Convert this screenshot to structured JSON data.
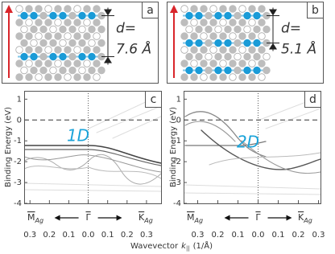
{
  "panels": [
    {
      "label": "a",
      "d_label": "d=",
      "d_value": "7.6 Å"
    },
    {
      "label": "b",
      "d_label": "d=",
      "d_value": "5.1 Å"
    }
  ],
  "plots": [
    {
      "label": "c",
      "phase": "1D",
      "xlim": [
        -0.33,
        0.375
      ]
    },
    {
      "label": "d",
      "phase": "2D",
      "xlim": [
        -0.37,
        0.31
      ]
    }
  ],
  "y_label": "Binding Energy (eV)",
  "ylim": [
    -4,
    1.4
  ],
  "yticks": [
    1,
    0,
    -1,
    -2,
    -3,
    -4
  ],
  "xticks": [
    {
      "value": -0.3,
      "label": "0.3"
    },
    {
      "value": -0.2,
      "label": "0.2"
    },
    {
      "value": -0.1,
      "label": "0.1"
    },
    {
      "value": 0,
      "label": "0.0"
    },
    {
      "value": 0.1,
      "label": "0.1"
    },
    {
      "value": 0.2,
      "label": "0.2"
    },
    {
      "value": 0.3,
      "label": "0.3"
    }
  ],
  "x_label": {
    "text": "Wavevector",
    "var": "k",
    "sub": "||",
    "unit": "(1/Å)"
  },
  "directions": {
    "m": "M",
    "m_sub": "Ag",
    "gamma": "Γ",
    "k": "K",
    "k_sub": "Ag"
  }
}
